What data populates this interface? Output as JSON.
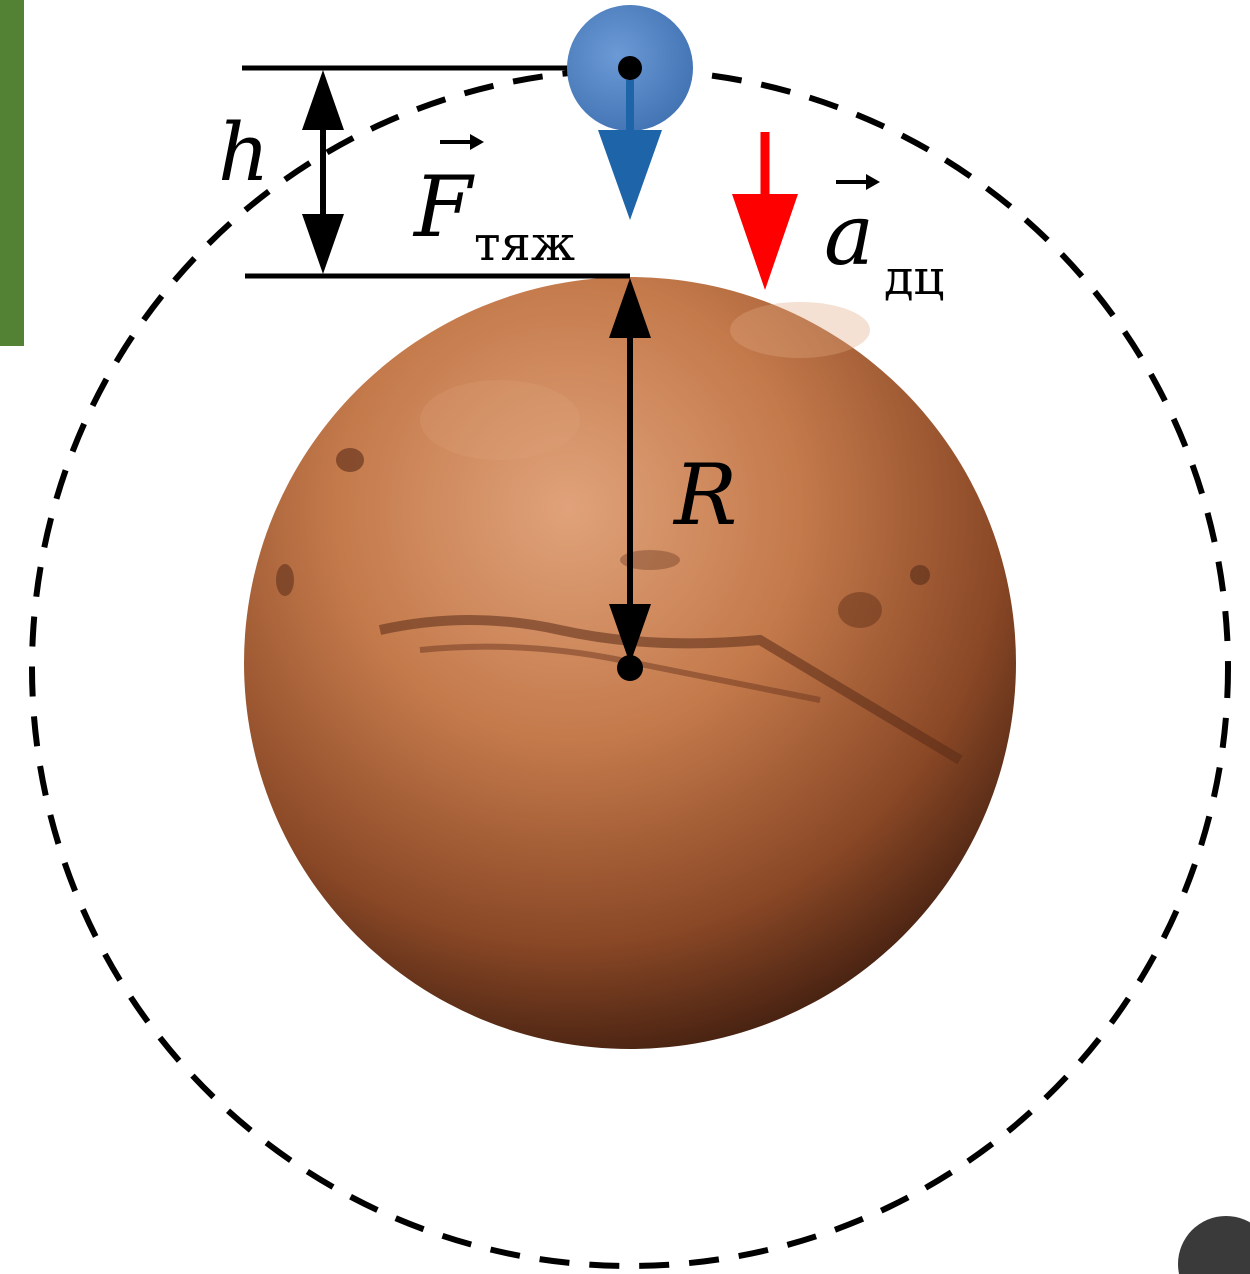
{
  "labels": {
    "height": "h",
    "radius": "R",
    "gravity_force": {
      "symbol": "F",
      "subscript": "тяж"
    },
    "centripetal_accel": {
      "symbol": "a",
      "subscript": "дц"
    }
  },
  "colors": {
    "background": "#ffffff",
    "side_bar": "#548235",
    "satellite_fill": "#4a7ebd",
    "gravity_arrow": "#1d64a8",
    "accel_arrow": "#ff0000",
    "lines": "#000000",
    "planet_light": "#d99a6c",
    "planet_mid": "#b56a3e",
    "planet_dark": "#4a2414",
    "corner_badge": "#3a3a3a"
  },
  "icons": {
    "planet": "mars-planet-icon",
    "satellite": "satellite-dot-icon"
  }
}
